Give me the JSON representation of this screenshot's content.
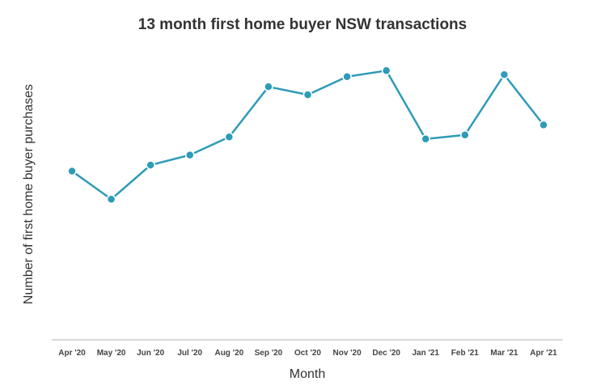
{
  "chart_data": {
    "type": "line",
    "title": "13 month first home buyer NSW transactions",
    "xlabel": "Month",
    "ylabel": "Number of first home buyer purchases",
    "categories": [
      "Apr '20",
      "May '20",
      "Jun '20",
      "Jul '20",
      "Aug '20",
      "Sep '20",
      "Oct '20",
      "Nov '20",
      "Dec '20",
      "Jan '21",
      "Feb '21",
      "Mar '21",
      "Apr '21"
    ],
    "series": [
      {
        "values": [
          0.54,
          0.4,
          0.57,
          0.62,
          0.71,
          0.96,
          0.92,
          1.01,
          1.04,
          0.7,
          0.72,
          1.02,
          0.77
        ]
      }
    ],
    "ylim": [
      -0.3,
      1.15
    ],
    "y_ticks_shown": false,
    "grid": false,
    "legend": "none",
    "colors": {
      "line": "#2e9bb8",
      "marker_fill": "#2e9bb8",
      "marker_stroke": "#ffffff",
      "axis": "#cccccc"
    }
  }
}
